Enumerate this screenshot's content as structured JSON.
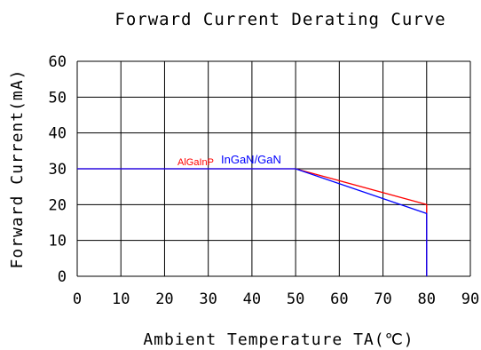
{
  "chart_data": {
    "type": "line",
    "title": "Forward Current Derating Curve",
    "xlabel": "Ambient Temperature TA(℃)",
    "ylabel": "Forward Current(mA)",
    "xlim": [
      0,
      90
    ],
    "ylim": [
      0,
      60
    ],
    "xticks": [
      0,
      10,
      20,
      30,
      40,
      50,
      60,
      70,
      80,
      90
    ],
    "yticks": [
      0,
      10,
      20,
      30,
      40,
      50,
      60
    ],
    "grid": true,
    "series": [
      {
        "name": "AlGaInP",
        "color": "#ff0000",
        "points": [
          [
            0,
            30
          ],
          [
            50,
            30
          ],
          [
            80,
            20
          ],
          [
            80,
            0
          ]
        ]
      },
      {
        "name": "InGaN/GaN",
        "color": "#0000ff",
        "points": [
          [
            0,
            30
          ],
          [
            50,
            30
          ],
          [
            80,
            17.5
          ],
          [
            80,
            0
          ]
        ]
      }
    ]
  }
}
